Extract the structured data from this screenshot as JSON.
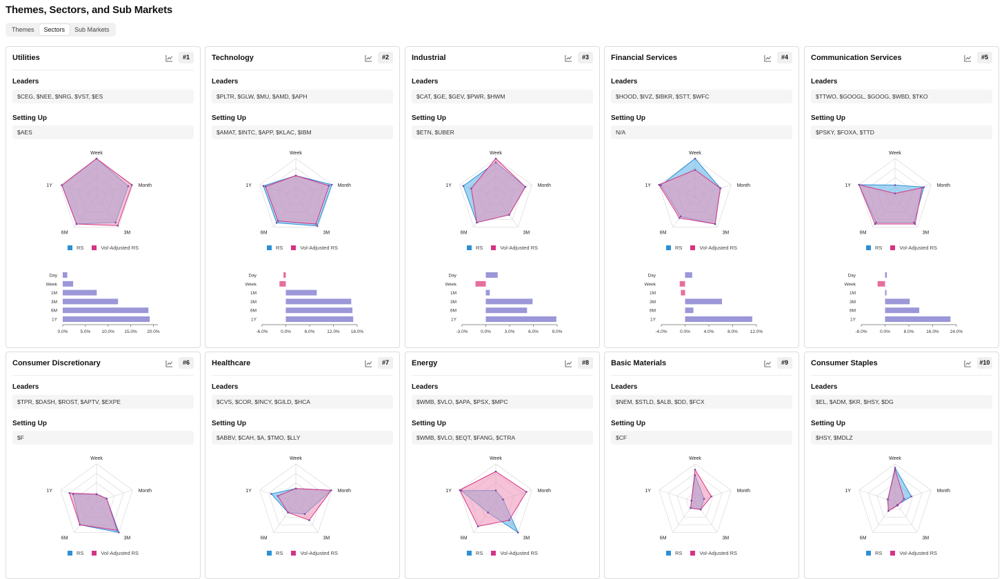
{
  "page_title": "Themes, Sectors, and Sub Markets",
  "tabs": [
    {
      "label": "Themes",
      "active": false
    },
    {
      "label": "Sectors",
      "active": true
    },
    {
      "label": "Sub Markets",
      "active": false
    }
  ],
  "labels": {
    "leaders": "Leaders",
    "setting_up": "Setting Up",
    "legend_rs": "RS",
    "legend_vol": "Vol-Adjusted RS",
    "radar_axes": [
      "Week",
      "Month",
      "3M",
      "6M",
      "1Y"
    ],
    "bar_categories": [
      "Day",
      "Week",
      "1M",
      "3M",
      "6M",
      "1Y"
    ]
  },
  "colors": {
    "rs": "#2d8fd5",
    "vol_adjusted_rs": "#d63384",
    "bar": "#9b97d8",
    "bar_negative": "#e5709f",
    "accent_fill_rs": "#5ab0e8",
    "accent_fill_vol": "#ec8fb7"
  },
  "icons": {
    "chart": "line-chart-icon"
  },
  "sectors": [
    {
      "name": "Utilities",
      "rank": "#1",
      "leaders": "$CEG, $NEE, $NRG, $VST, $ES",
      "setting_up": "$AES",
      "chart_data": {
        "type": "radar+bar",
        "radar": {
          "axes": [
            "Week",
            "Month",
            "3M",
            "6M",
            "1Y"
          ],
          "rs": [
            1.0,
            0.88,
            0.85,
            0.9,
            0.96
          ],
          "vol_adjusted_rs": [
            1.0,
            0.98,
            0.95,
            0.9,
            0.96
          ]
        },
        "bars": {
          "values": [
            1.0,
            2.3,
            7.5,
            12.2,
            18.9,
            19.2
          ],
          "ticks": [
            0,
            5,
            10,
            15,
            20
          ],
          "tick_labels": [
            "0.0%",
            "5.0%",
            "10.0%",
            "15.0%",
            "20.0%"
          ],
          "range": [
            0,
            21
          ]
        }
      }
    },
    {
      "name": "Technology",
      "rank": "#2",
      "leaders": "$PLTR, $GLW, $MU, $AMD, $APH",
      "setting_up": "$AMAT, $INTC, $APP, $KLAC, $IBM",
      "chart_data": {
        "type": "radar+bar",
        "radar": {
          "axes": [
            "Week",
            "Month",
            "3M",
            "6M",
            "1Y"
          ],
          "rs": [
            0.55,
            1.0,
            0.96,
            0.86,
            0.9
          ],
          "vol_adjusted_rs": [
            0.55,
            0.92,
            0.9,
            0.8,
            0.84
          ]
        },
        "bars": {
          "values": [
            -0.6,
            -1.6,
            7.8,
            16.5,
            16.8,
            17.0
          ],
          "ticks": [
            -6,
            0,
            6,
            12,
            18
          ],
          "tick_labels": [
            "-6.0%",
            "0.0%",
            "6.0%",
            "12.0%",
            "18.0%"
          ],
          "range": [
            -6,
            18
          ]
        }
      }
    },
    {
      "name": "Industrial",
      "rank": "#3",
      "leaders": "$CAT, $GE, $GEV, $PWR, $HWM",
      "setting_up": "$ETN, $UBER",
      "chart_data": {
        "type": "radar+bar",
        "radar": {
          "axes": [
            "Week",
            "Month",
            "3M",
            "6M",
            "1Y"
          ],
          "rs": [
            0.9,
            0.82,
            0.6,
            0.85,
            0.9
          ],
          "vol_adjusted_rs": [
            1.0,
            0.82,
            0.6,
            0.85,
            0.68
          ]
        },
        "bars": {
          "values": [
            1.5,
            -1.3,
            0.5,
            5.9,
            5.2,
            8.9
          ],
          "ticks": [
            -3,
            0,
            3,
            6,
            9
          ],
          "tick_labels": [
            "-3.0%",
            "0.0%",
            "3.0%",
            "6.0%",
            "9.0%"
          ],
          "range": [
            -3,
            9
          ]
        }
      }
    },
    {
      "name": "Financial Services",
      "rank": "#4",
      "leaders": "$HOOD, $IVZ, $IBKR, $STT, $WFC",
      "setting_up": "N/A",
      "chart_data": {
        "type": "radar+bar",
        "radar": {
          "axes": [
            "Week",
            "Month",
            "3M",
            "6M",
            "1Y"
          ],
          "rs": [
            1.0,
            0.7,
            0.9,
            0.65,
            0.95
          ],
          "vol_adjusted_rs": [
            0.7,
            0.7,
            0.9,
            0.7,
            1.0
          ]
        },
        "bars": {
          "values": [
            1.2,
            -0.9,
            -0.7,
            6.2,
            1.4,
            11.3
          ],
          "ticks": [
            -4,
            0,
            4,
            8,
            12
          ],
          "tick_labels": [
            "-4.0%",
            "0.0%",
            "4.0%",
            "8.0%",
            "12.0%"
          ],
          "range": [
            -4,
            12
          ]
        }
      }
    },
    {
      "name": "Communication Services",
      "rank": "#5",
      "leaders": "$TTWO, $GOOGL, $GOOG, $WBD, $TKO",
      "setting_up": "$PSKY, $FOXA, $TTD",
      "chart_data": {
        "type": "radar+bar",
        "radar": {
          "axes": [
            "Week",
            "Month",
            "3M",
            "6M",
            "1Y"
          ],
          "rs": [
            0.3,
            0.8,
            0.85,
            0.85,
            1.0
          ],
          "vol_adjusted_rs": [
            0.08,
            0.75,
            0.9,
            0.9,
            1.0
          ]
        },
        "bars": {
          "values": [
            0.6,
            -2.5,
            0.5,
            8.3,
            11.5,
            22.0
          ],
          "ticks": [
            -8,
            0,
            8,
            16,
            24
          ],
          "tick_labels": [
            "-8.0%",
            "0.0%",
            "8.0%",
            "16.0%",
            "24.0%"
          ],
          "range": [
            -8,
            24
          ]
        }
      }
    },
    {
      "name": "Consumer Discretionary",
      "rank": "#6",
      "leaders": "$TPR, $DASH, $ROST, $APTV, $EXPE",
      "setting_up": "$F",
      "chart_data": {
        "type": "radar",
        "radar": {
          "axes": [
            "Week",
            "Month",
            "3M",
            "6M",
            "1Y"
          ],
          "rs": [
            0.2,
            0.28,
            1.0,
            0.75,
            0.65
          ],
          "vol_adjusted_rs": [
            0.2,
            0.28,
            0.93,
            0.75,
            0.75
          ]
        }
      }
    },
    {
      "name": "Healthcare",
      "rank": "#7",
      "leaders": "$CVS, $COR, $INCY, $GILD, $HCA",
      "setting_up": "$ABBV, $CAH, $A, $TMO, $LLY",
      "chart_data": {
        "type": "radar",
        "radar": {
          "axes": [
            "Week",
            "Month",
            "3M",
            "6M",
            "1Y"
          ],
          "rs": [
            0.35,
            0.98,
            0.4,
            0.35,
            0.68
          ],
          "vol_adjusted_rs": [
            0.35,
            0.98,
            0.6,
            0.35,
            0.5
          ]
        }
      }
    },
    {
      "name": "Energy",
      "rank": "#8",
      "leaders": "$WMB, $VLO, $APA, $PSX, $MPC",
      "setting_up": "$WMB, $VLO, $EQT, $FANG, $CTRA",
      "chart_data": {
        "type": "radar",
        "radar": {
          "axes": [
            "Week",
            "Month",
            "3M",
            "6M",
            "1Y"
          ],
          "rs": [
            0.3,
            0.2,
            1.0,
            0.35,
            0.95
          ],
          "vol_adjusted_rs": [
            0.8,
            0.85,
            0.6,
            0.8,
            1.0
          ]
        }
      }
    },
    {
      "name": "Basic Materials",
      "rank": "#9",
      "leaders": "$NEM, $STLD, $ALB, $DD, $FCX",
      "setting_up": "$CF",
      "chart_data": {
        "type": "radar",
        "radar": {
          "axes": [
            "Week",
            "Month",
            "3M",
            "6M",
            "1Y"
          ],
          "rs": [
            0.7,
            0.25,
            0.25,
            0.2,
            0.1
          ],
          "vol_adjusted_rs": [
            0.85,
            0.45,
            0.25,
            0.2,
            0.1
          ]
        }
      }
    },
    {
      "name": "Consumer Staples",
      "rank": "#10",
      "leaders": "$EL, $ADM, $KR, $HSY, $DG",
      "setting_up": "$HSY, $MDLZ",
      "chart_data": {
        "type": "radar",
        "radar": {
          "axes": [
            "Week",
            "Month",
            "3M",
            "6M",
            "1Y"
          ],
          "rs": [
            0.9,
            0.45,
            0.1,
            0.3,
            0.2
          ],
          "vol_adjusted_rs": [
            0.85,
            0.25,
            0.12,
            0.3,
            0.2
          ]
        }
      }
    }
  ]
}
